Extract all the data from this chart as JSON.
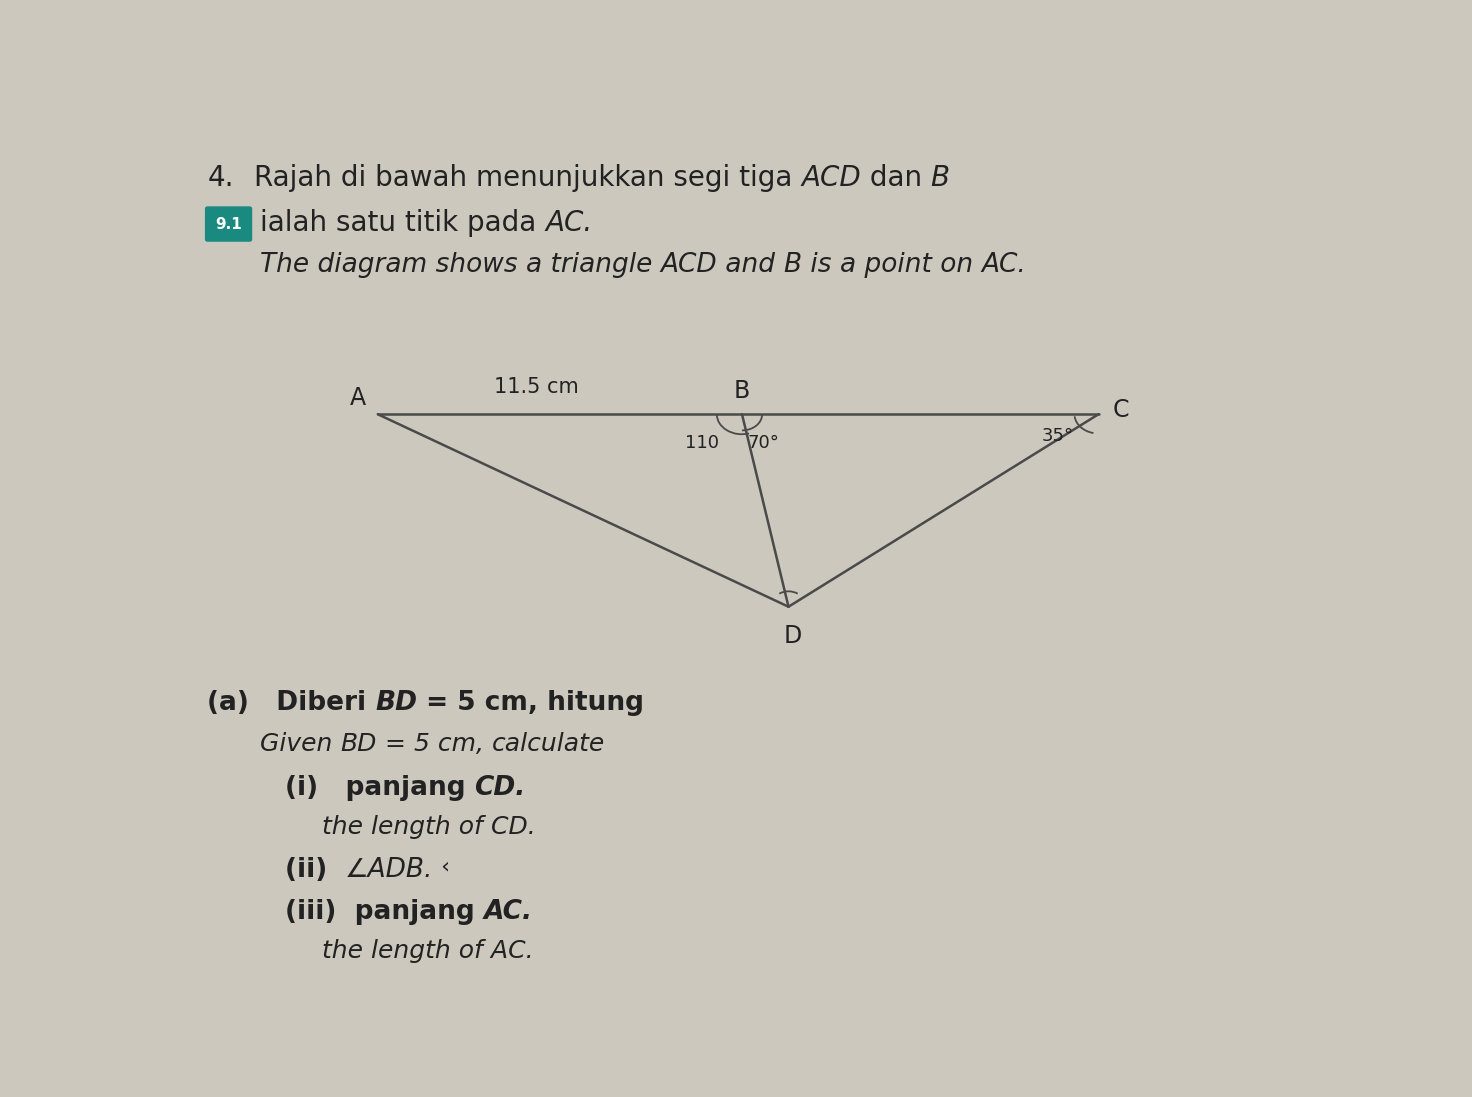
{
  "bg_color": "#ccc8be",
  "badge_color": "#1a8a80",
  "badge_text": "9.1",
  "line_color": "#4a4a4a",
  "text_color": "#222222",
  "A": [
    2.5,
    7.3
  ],
  "B": [
    7.2,
    7.3
  ],
  "C": [
    11.8,
    7.3
  ],
  "D": [
    7.8,
    4.8
  ],
  "label_AB": "11.5 cm",
  "label_A": "A",
  "label_B": "B",
  "label_C": "C",
  "label_D": "D",
  "angle_left": "110",
  "angle_right": "70°",
  "angle_C": "35°"
}
